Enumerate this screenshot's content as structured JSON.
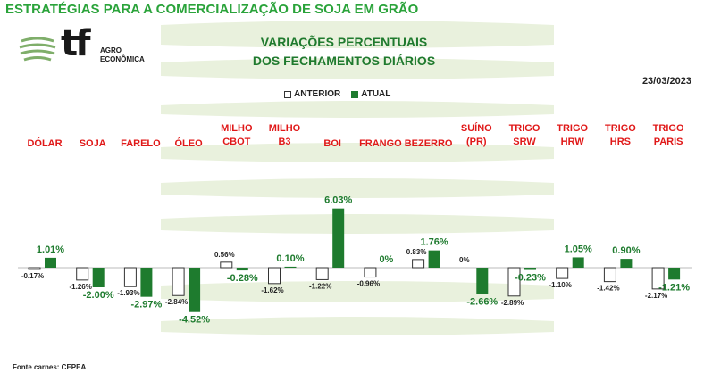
{
  "header": {
    "page_title": "ESTRATÉGIAS PARA A COMERCIALIZAÇÃO DE SOJA EM GRÃO",
    "logo_main": "tf",
    "logo_sub_1": "AGRO",
    "logo_sub_2": "ECONÔMICA",
    "chart_title_1": "VARIAÇÕES PERCENTUAIS",
    "chart_title_2": "DOS FECHAMENTOS DIÁRIOS",
    "date": "23/03/2023"
  },
  "legend": {
    "previous": "ANTERIOR",
    "current": "ATUAL"
  },
  "footer": {
    "source": "Fonte carnes: CEPEA"
  },
  "colors": {
    "title": "#2aa33a",
    "current_bar": "#1e7b2e",
    "category": "#e01818",
    "stripes": "#e9f1dd"
  },
  "chart_data": {
    "type": "bar",
    "categories": [
      [
        "DÓLAR"
      ],
      [
        "SOJA"
      ],
      [
        "FARELO"
      ],
      [
        "ÓLEO"
      ],
      [
        "MILHO",
        "CBOT"
      ],
      [
        "MILHO",
        "B3"
      ],
      [
        "BOI"
      ],
      [
        "FRANGO"
      ],
      [
        "BEZERRO"
      ],
      [
        "SUÍNO",
        "(PR)"
      ],
      [
        "TRIGO",
        "SRW"
      ],
      [
        "TRIGO",
        "HRW"
      ],
      [
        "TRIGO",
        "HRS"
      ],
      [
        "TRIGO",
        "PARIS"
      ]
    ],
    "series": [
      {
        "name": "ANTERIOR",
        "values": [
          -0.17,
          -1.26,
          -1.93,
          -2.84,
          0.56,
          -1.62,
          -1.22,
          -0.96,
          0.83,
          0,
          -2.89,
          -1.1,
          -1.42,
          -2.17
        ]
      },
      {
        "name": "ATUAL",
        "values": [
          1.01,
          -2.0,
          -2.97,
          -4.52,
          -0.28,
          0.1,
          6.03,
          0,
          1.76,
          -2.66,
          -0.23,
          1.05,
          0.9,
          -1.21
        ]
      }
    ],
    "labels_previous": [
      "-0.17%",
      "-1.26%",
      "-1.93%",
      "-2.84%",
      "0.56%",
      "-1.62%",
      "-1.22%",
      "-0.96%",
      "0.83%",
      "0%",
      "-2.89%",
      "-1.10%",
      "-1.42%",
      "-2.17%"
    ],
    "labels_current": [
      "1.01%",
      "-2.00%",
      "-2.97%",
      "-4.52%",
      "-0.28%",
      "0.10%",
      "6.03%",
      "0%",
      "1.76%",
      "-2.66%",
      "-0.23%",
      "1.05%",
      "0.90%",
      "-1.21%"
    ],
    "grid": false,
    "legend_position": "top-center"
  }
}
